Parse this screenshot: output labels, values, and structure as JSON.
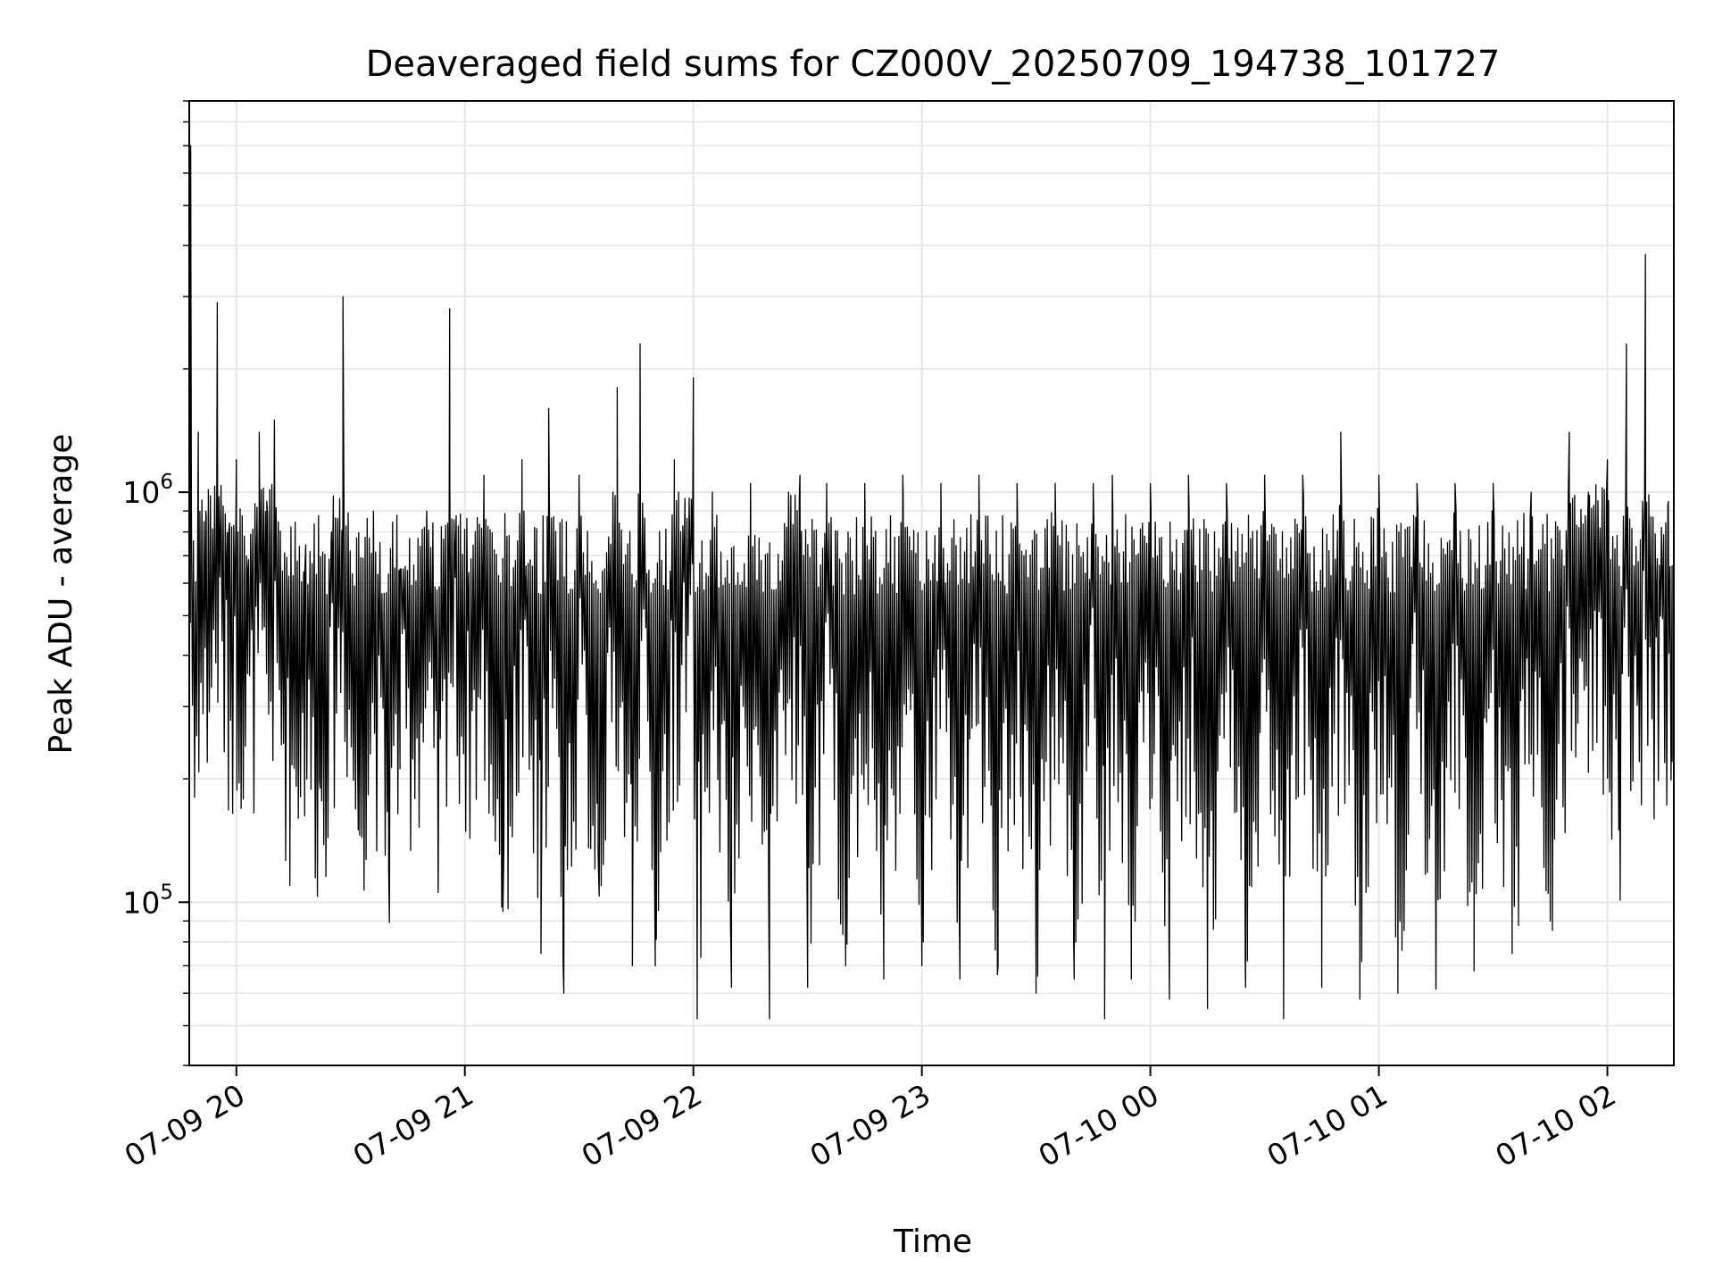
{
  "chart_data": {
    "type": "line",
    "title": "Deaveraged field sums for CZ000V_20250709_194738_101727",
    "xlabel": "Time",
    "ylabel": "Peak ADU - average",
    "yscale": "log",
    "ylim": [
      40000,
      9000000
    ],
    "xlim": [
      "2025-07-09 19:47:38",
      "2025-07-10 02:17:27"
    ],
    "x_ticks": [
      {
        "t": "2025-07-09 20:00:00",
        "label": "07-09 20"
      },
      {
        "t": "2025-07-09 21:00:00",
        "label": "07-09 21"
      },
      {
        "t": "2025-07-09 22:00:00",
        "label": "07-09 22"
      },
      {
        "t": "2025-07-09 23:00:00",
        "label": "07-09 23"
      },
      {
        "t": "2025-07-10 00:00:00",
        "label": "07-10 00"
      },
      {
        "t": "2025-07-10 01:00:00",
        "label": "07-10 01"
      },
      {
        "t": "2025-07-10 02:00:00",
        "label": "07-10 02"
      }
    ],
    "y_ticks": [
      {
        "value": 100000,
        "base": "10",
        "exp": "5"
      },
      {
        "value": 1000000,
        "base": "10",
        "exp": "6"
      }
    ],
    "grid": true,
    "line_color": "#000000",
    "series": [
      {
        "x": [
          "2025-07-09 19:47:38",
          "2025-07-09 19:48:00",
          "2025-07-09 19:49:00",
          "2025-07-09 19:50:00",
          "2025-07-09 19:52:00",
          "2025-07-09 19:55:00",
          "2025-07-09 19:58:00",
          "2025-07-09 20:00:00",
          "2025-07-09 20:03:00",
          "2025-07-09 20:06:00",
          "2025-07-09 20:08:00",
          "2025-07-09 20:10:00",
          "2025-07-09 20:14:00",
          "2025-07-09 20:18:00",
          "2025-07-09 20:22:00",
          "2025-07-09 20:25:00",
          "2025-07-09 20:28:00",
          "2025-07-09 20:32:00",
          "2025-07-09 20:36:00",
          "2025-07-09 20:40:00",
          "2025-07-09 20:43:00",
          "2025-07-09 20:46:00",
          "2025-07-09 20:50:00",
          "2025-07-09 20:53:00",
          "2025-07-09 20:56:00",
          "2025-07-09 21:00:00",
          "2025-07-09 21:05:00",
          "2025-07-09 21:10:00",
          "2025-07-09 21:15:00",
          "2025-07-09 21:20:00",
          "2025-07-09 21:22:00",
          "2025-07-09 21:26:00",
          "2025-07-09 21:30:00",
          "2025-07-09 21:35:00",
          "2025-07-09 21:40:00",
          "2025-07-09 21:44:00",
          "2025-07-09 21:46:00",
          "2025-07-09 21:50:00",
          "2025-07-09 21:55:00",
          "2025-07-09 22:00:00",
          "2025-07-09 22:01:00",
          "2025-07-09 22:05:00",
          "2025-07-09 22:10:00",
          "2025-07-09 22:15:00",
          "2025-07-09 22:20:00",
          "2025-07-09 22:25:00",
          "2025-07-09 22:28:00",
          "2025-07-09 22:30:00",
          "2025-07-09 22:35:00",
          "2025-07-09 22:40:00",
          "2025-07-09 22:45:00",
          "2025-07-09 22:50:00",
          "2025-07-09 22:55:00",
          "2025-07-09 23:00:00",
          "2025-07-09 23:05:00",
          "2025-07-09 23:10:00",
          "2025-07-09 23:15:00",
          "2025-07-09 23:20:00",
          "2025-07-09 23:25:00",
          "2025-07-09 23:30:00",
          "2025-07-09 23:35:00",
          "2025-07-09 23:40:00",
          "2025-07-09 23:45:00",
          "2025-07-09 23:48:00",
          "2025-07-09 23:50:00",
          "2025-07-09 23:55:00",
          "2025-07-10 00:00:00",
          "2025-07-10 00:05:00",
          "2025-07-10 00:10:00",
          "2025-07-10 00:15:00",
          "2025-07-10 00:20:00",
          "2025-07-10 00:25:00",
          "2025-07-10 00:30:00",
          "2025-07-10 00:35:00",
          "2025-07-10 00:40:00",
          "2025-07-10 00:45:00",
          "2025-07-10 00:50:00",
          "2025-07-10 00:55:00",
          "2025-07-10 01:00:00",
          "2025-07-10 01:05:00",
          "2025-07-10 01:10:00",
          "2025-07-10 01:15:00",
          "2025-07-10 01:20:00",
          "2025-07-10 01:25:00",
          "2025-07-10 01:30:00",
          "2025-07-10 01:35:00",
          "2025-07-10 01:40:00",
          "2025-07-10 01:45:00",
          "2025-07-10 01:50:00",
          "2025-07-10 01:55:00",
          "2025-07-10 02:00:00",
          "2025-07-10 02:03:00",
          "2025-07-10 02:05:00",
          "2025-07-10 02:08:00",
          "2025-07-10 02:10:00",
          "2025-07-10 02:13:00",
          "2025-07-10 02:16:00",
          "2025-07-10 02:17:00"
        ],
        "y": [
          1300000,
          7000000,
          220000,
          1400000,
          900000,
          2900000,
          800000,
          1200000,
          650000,
          1400000,
          950000,
          1500000,
          300000,
          650000,
          190000,
          800000,
          3000000,
          150000,
          900000,
          120000,
          650000,
          500000,
          900000,
          110000,
          2800000,
          550000,
          1100000,
          95000,
          1200000,
          75000,
          1600000,
          60000,
          1100000,
          130000,
          1800000,
          70000,
          2300000,
          70000,
          1200000,
          1900000,
          52000,
          1000000,
          62000,
          1050000,
          52000,
          1000000,
          1100000,
          62000,
          1050000,
          70000,
          1050000,
          65000,
          1100000,
          70000,
          1050000,
          65000,
          1100000,
          70000,
          1050000,
          60000,
          1050000,
          65000,
          1050000,
          52000,
          1100000,
          65000,
          1050000,
          58000,
          1100000,
          55000,
          1050000,
          62000,
          1100000,
          52000,
          1100000,
          62000,
          1400000,
          58000,
          1100000,
          60000,
          1050000,
          62000,
          1050000,
          68000,
          1050000,
          75000,
          1000000,
          90000,
          1400000,
          1000000,
          1200000,
          150000,
          2300000,
          350000,
          3800000,
          600000,
          950000,
          220000
        ]
      }
    ]
  }
}
